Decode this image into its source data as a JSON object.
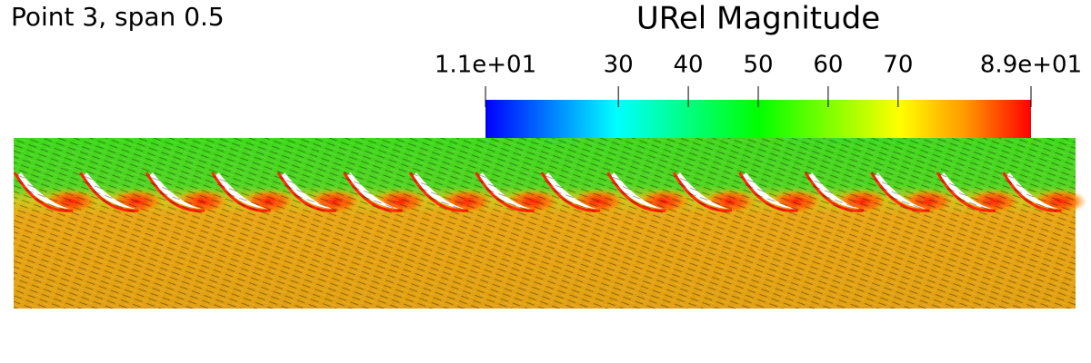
{
  "title": "Point 3, span 0.5",
  "colorbar": {
    "title": "URel Magnitude",
    "range": [
      11,
      89
    ],
    "ticks": [
      {
        "value": 11,
        "label": "1.1e+01"
      },
      30,
      40,
      50,
      60,
      70,
      {
        "value": 89,
        "label": "8.9e+01"
      }
    ]
  }
}
